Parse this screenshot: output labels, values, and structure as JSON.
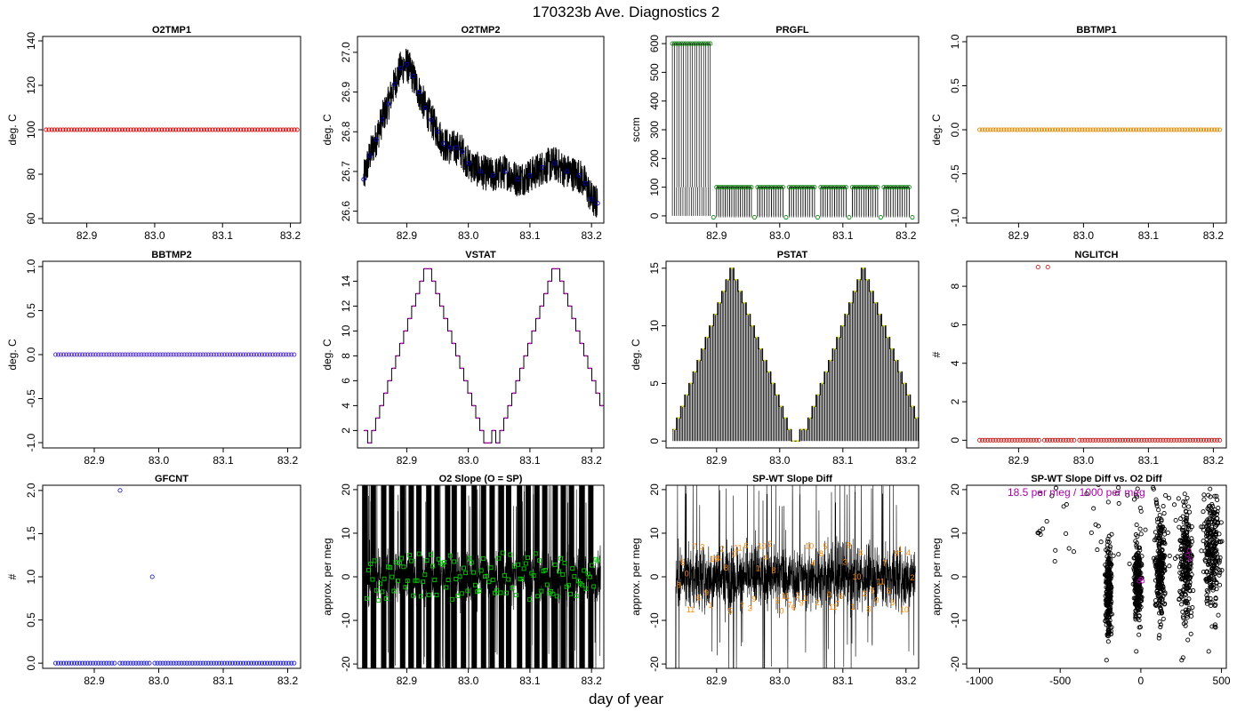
{
  "figure": {
    "title": "170323b   Ave. Diagnostics 2",
    "xlabel": "day of year"
  },
  "chart_data": [
    {
      "id": "o2tmp1",
      "type": "scatter",
      "title": "O2TMP1",
      "ylabel": "deg. C",
      "xlim": [
        82.835,
        83.215
      ],
      "ylim": [
        58,
        142
      ],
      "xticks": [
        82.9,
        83.0,
        83.1,
        83.2
      ],
      "xtick_labels": [
        "82.9",
        "83.0",
        "83.1",
        "83.2"
      ],
      "yticks": [
        60,
        80,
        100,
        120,
        140
      ],
      "ytick_labels": [
        "60",
        "80",
        "100",
        "120",
        "140"
      ],
      "points_color": "#e00000",
      "x_start": 82.84,
      "x_end": 83.21,
      "n_points": 90,
      "value": 100
    },
    {
      "id": "o2tmp2",
      "type": "line",
      "title": "O2TMP2",
      "ylabel": "deg. C",
      "xlim": [
        82.82,
        83.22
      ],
      "ylim": [
        26.57,
        27.04
      ],
      "xticks": [
        82.9,
        83.0,
        83.1,
        83.2
      ],
      "xtick_labels": [
        "82.9",
        "83.0",
        "83.1",
        "83.2"
      ],
      "yticks": [
        26.6,
        26.7,
        26.8,
        26.9,
        27.0
      ],
      "ytick_labels": [
        "26.6",
        "26.7",
        "26.8",
        "26.9",
        "27.0"
      ],
      "points_color": "#0000cc",
      "x": [
        82.83,
        82.84,
        82.85,
        82.86,
        82.87,
        82.88,
        82.89,
        82.9,
        82.91,
        82.92,
        82.93,
        82.94,
        82.95,
        82.96,
        82.97,
        82.98,
        82.99,
        83.0,
        83.02,
        83.04,
        83.06,
        83.08,
        83.1,
        83.12,
        83.14,
        83.16,
        83.18,
        83.19,
        83.2,
        83.21
      ],
      "y": [
        26.68,
        26.74,
        26.78,
        26.83,
        26.87,
        26.92,
        26.96,
        26.97,
        26.94,
        26.9,
        26.86,
        26.83,
        26.8,
        26.77,
        26.76,
        26.76,
        26.75,
        26.72,
        26.7,
        26.69,
        26.7,
        26.68,
        26.69,
        26.71,
        26.72,
        26.7,
        26.69,
        26.67,
        26.63,
        26.62
      ]
    },
    {
      "id": "prgfl",
      "type": "scatter",
      "title": "PRGFL",
      "ylabel": "sccm",
      "xlim": [
        82.82,
        83.22
      ],
      "ylim": [
        -25,
        625
      ],
      "xticks": [
        82.9,
        83.0,
        83.1,
        83.2
      ],
      "xtick_labels": [
        "82.9",
        "83.0",
        "83.1",
        "83.2"
      ],
      "yticks": [
        0,
        100,
        200,
        300,
        400,
        500,
        600
      ],
      "ytick_labels": [
        "0",
        "100",
        "200",
        "300",
        "400",
        "500",
        "600"
      ],
      "points_color": "#118811",
      "segments": [
        {
          "x_start": 82.83,
          "x_end": 82.89,
          "value": 600
        },
        {
          "x_start": 82.9,
          "x_end": 82.955,
          "value": 100
        },
        {
          "x_start": 82.965,
          "x_end": 83.005,
          "value": 100
        },
        {
          "x_start": 83.015,
          "x_end": 83.055,
          "value": 100
        },
        {
          "x_start": 83.065,
          "x_end": 83.105,
          "value": 100
        },
        {
          "x_start": 83.115,
          "x_end": 83.155,
          "value": 100
        },
        {
          "x_start": 83.165,
          "x_end": 83.205,
          "value": 100
        }
      ],
      "low_points": [
        {
          "x": 82.895,
          "y": -5
        },
        {
          "x": 82.96,
          "y": -5
        },
        {
          "x": 83.01,
          "y": -5
        },
        {
          "x": 83.06,
          "y": -5
        },
        {
          "x": 83.11,
          "y": -5
        },
        {
          "x": 83.16,
          "y": -5
        },
        {
          "x": 83.21,
          "y": -5
        }
      ]
    },
    {
      "id": "bbtmp1",
      "type": "scatter",
      "title": "BBTMP1",
      "ylabel": "deg. C",
      "xlim": [
        82.82,
        83.22
      ],
      "ylim": [
        -1.06,
        1.06
      ],
      "xticks": [
        82.9,
        83.0,
        83.1,
        83.2
      ],
      "xtick_labels": [
        "82.9",
        "83.0",
        "83.1",
        "83.2"
      ],
      "yticks": [
        -1.0,
        -0.5,
        0.0,
        0.5,
        1.0
      ],
      "ytick_labels": [
        "-1.0",
        "-0.5",
        "0.0",
        "0.5",
        "1.0"
      ],
      "points_color": "#e08a00",
      "x_start": 82.84,
      "x_end": 83.21,
      "n_points": 90,
      "value": 0
    },
    {
      "id": "bbtmp2",
      "type": "scatter",
      "title": "BBTMP2",
      "ylabel": "deg. C",
      "xlim": [
        82.82,
        83.22
      ],
      "ylim": [
        -1.06,
        1.06
      ],
      "xticks": [
        82.9,
        83.0,
        83.1,
        83.2
      ],
      "xtick_labels": [
        "82.9",
        "83.0",
        "83.1",
        "83.2"
      ],
      "yticks": [
        -1.0,
        -0.5,
        0.0,
        0.5,
        1.0
      ],
      "ytick_labels": [
        "-1.0",
        "-0.5",
        "0.0",
        "0.5",
        "1.0"
      ],
      "points_color": "#5533cc",
      "x_start": 82.84,
      "x_end": 83.21,
      "n_points": 90,
      "value": 0
    },
    {
      "id": "vstat",
      "type": "line",
      "title": "VSTAT",
      "ylabel": "deg. C",
      "xlim": [
        82.82,
        83.22
      ],
      "ylim": [
        0.6,
        15.6
      ],
      "xticks": [
        82.9,
        83.0,
        83.1,
        83.2
      ],
      "xtick_labels": [
        "82.9",
        "83.0",
        "83.1",
        "83.2"
      ],
      "yticks": [
        2,
        4,
        6,
        8,
        10,
        12,
        14
      ],
      "ytick_labels": [
        "2",
        "4",
        "6",
        "8",
        "10",
        "12",
        "14"
      ],
      "points_color": "#dd00dd",
      "cycle_start": 82.83,
      "step_width": 0.0065,
      "cycle_values": [
        2,
        1,
        2,
        3,
        4,
        5,
        6,
        7,
        8,
        9,
        10,
        11,
        12,
        13,
        14,
        15,
        15,
        14,
        13,
        12,
        11,
        10,
        9,
        8,
        7,
        6,
        5,
        4,
        3,
        2,
        1,
        1
      ],
      "n_cycles": 3,
      "tail_value": 1
    },
    {
      "id": "pstat",
      "type": "line",
      "title": "PSTAT",
      "ylabel": "deg. C",
      "xlim": [
        82.82,
        83.22
      ],
      "ylim": [
        -0.6,
        15.6
      ],
      "xticks": [
        82.9,
        83.0,
        83.1,
        83.2
      ],
      "xtick_labels": [
        "82.9",
        "83.0",
        "83.1",
        "83.2"
      ],
      "yticks": [
        0,
        5,
        10,
        15
      ],
      "ytick_labels": [
        "0",
        "5",
        "10",
        "15"
      ],
      "points_color": "#dddd00",
      "cycle_start": 82.83,
      "step_width": 0.0065,
      "cycle_values": [
        1,
        2,
        3,
        4,
        5,
        6,
        7,
        8,
        9,
        10,
        11,
        12,
        13,
        14,
        15,
        14,
        13,
        12,
        11,
        10,
        9,
        8,
        7,
        6,
        5,
        4,
        3,
        2,
        1,
        0,
        0,
        1
      ],
      "n_cycles": 3,
      "tail_value": 0
    },
    {
      "id": "nglitch",
      "type": "scatter",
      "title": "NGLITCH",
      "ylabel": "#",
      "xlim": [
        82.82,
        83.22
      ],
      "ylim": [
        -0.4,
        9.3
      ],
      "xticks": [
        82.9,
        83.0,
        83.1,
        83.2
      ],
      "xtick_labels": [
        "82.9",
        "83.0",
        "83.1",
        "83.2"
      ],
      "yticks": [
        0,
        2,
        4,
        6,
        8
      ],
      "ytick_labels": [
        "0",
        "2",
        "4",
        "6",
        "8"
      ],
      "points_color": "#cc2222",
      "x_start": 82.84,
      "x_end": 83.21,
      "n_points": 90,
      "value": 0,
      "outliers": [
        {
          "x": 82.93,
          "y": 9
        },
        {
          "x": 82.945,
          "y": 9
        }
      ]
    },
    {
      "id": "gfcnt",
      "type": "scatter",
      "title": "GFCNT",
      "ylabel": "#",
      "xlim": [
        82.82,
        83.22
      ],
      "ylim": [
        -0.06,
        2.06
      ],
      "xticks": [
        82.9,
        83.0,
        83.1,
        83.2
      ],
      "xtick_labels": [
        "82.9",
        "83.0",
        "83.1",
        "83.2"
      ],
      "yticks": [
        0.0,
        0.5,
        1.0,
        1.5,
        2.0
      ],
      "ytick_labels": [
        "0.0",
        "0.5",
        "1.0",
        "1.5",
        "2.0"
      ],
      "points_color": "#2222cc",
      "x_start": 82.84,
      "x_end": 83.21,
      "n_points": 90,
      "value": 0,
      "outliers": [
        {
          "x": 82.94,
          "y": 2
        },
        {
          "x": 82.99,
          "y": 1
        }
      ]
    },
    {
      "id": "o2slope",
      "type": "scatter",
      "title": "O2 Slope (O = SP)",
      "ylabel": "approx. per meg",
      "xlim": [
        82.82,
        83.22
      ],
      "ylim": [
        -21,
        21
      ],
      "xticks": [
        82.9,
        83.0,
        83.1,
        83.2
      ],
      "xtick_labels": [
        "82.9",
        "83.0",
        "83.1",
        "83.2"
      ],
      "yticks": [
        -20,
        -10,
        0,
        10,
        20
      ],
      "ytick_labels": [
        "-20",
        "-10",
        "0",
        "10",
        "20"
      ],
      "points_color": "#00cc00",
      "noise_range": [
        -6,
        6
      ],
      "x_start": 82.835,
      "x_end": 83.21,
      "n_points": 120
    },
    {
      "id": "spwt",
      "type": "scatter",
      "title": "SP-WT Slope Diff",
      "ylabel": "approx. per meg",
      "xlim": [
        82.82,
        83.22
      ],
      "ylim": [
        -21,
        21
      ],
      "xticks": [
        82.9,
        83.0,
        83.1,
        83.2
      ],
      "xtick_labels": [
        "82.9",
        "83.0",
        "83.1",
        "83.2"
      ],
      "yticks": [
        -20,
        -10,
        0,
        10,
        20
      ],
      "ytick_labels": [
        "-20",
        "-10",
        "0",
        "10",
        "20"
      ],
      "points_color": "#ff8800",
      "markers": [
        "8",
        "5",
        "0",
        "11",
        "7",
        "6",
        "3",
        "9",
        "1",
        "10",
        "4",
        "2"
      ],
      "x_start": 82.84,
      "x_end": 83.21,
      "n_points": 60
    },
    {
      "id": "spwt_vs_o2",
      "type": "scatter",
      "title": "SP-WT Slope Diff vs. O2 Diff",
      "ylabel": "approx. per meg",
      "xlim": [
        -1080,
        530
      ],
      "ylim": [
        -21,
        21
      ],
      "xticks": [
        -1000,
        -500,
        0,
        500
      ],
      "xtick_labels": [
        "-1000",
        "-500",
        "0",
        "500"
      ],
      "yticks": [
        -20,
        -10,
        0,
        10,
        20
      ],
      "ytick_labels": [
        "-20",
        "-10",
        "0",
        "10",
        "20"
      ],
      "annotation": "18.5 per meg / 1000 per meg",
      "annotation_color": "#aa00aa",
      "clusters": [
        {
          "x": -200,
          "y": -3,
          "sx": 12,
          "sy": 7
        },
        {
          "x": -20,
          "y": -1,
          "sx": 15,
          "sy": 6
        },
        {
          "x": 120,
          "y": 3,
          "sx": 20,
          "sy": 8
        },
        {
          "x": 280,
          "y": 4,
          "sx": 25,
          "sy": 9
        },
        {
          "x": 440,
          "y": 7,
          "sx": 35,
          "sy": 9
        }
      ],
      "magenta_points": [
        {
          "x": -10,
          "y": -1
        },
        {
          "x": 0,
          "y": -0.5
        },
        {
          "x": 10,
          "y": -1
        },
        {
          "x": 290,
          "y": 5
        },
        {
          "x": 300,
          "y": 6
        },
        {
          "x": 305,
          "y": 4
        }
      ]
    }
  ]
}
